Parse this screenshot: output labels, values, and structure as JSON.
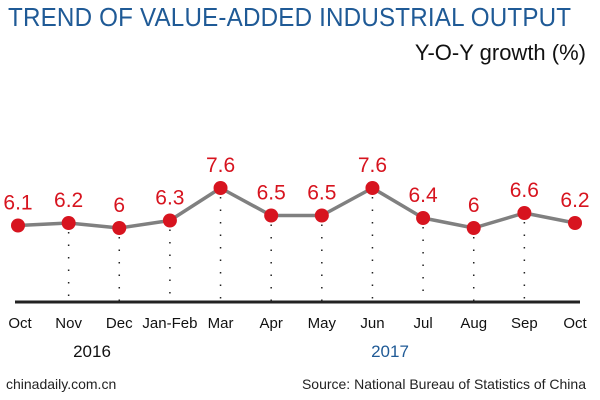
{
  "title": "TREND OF VALUE-ADDED INDUSTRIAL OUTPUT",
  "subtitle": "Y-O-Y growth (%)",
  "footer": {
    "left": "chinadaily.com.cn",
    "right": "Source: National Bureau of Statistics of China"
  },
  "chart_data": {
    "type": "line",
    "title": "TREND OF VALUE-ADDED INDUSTRIAL OUTPUT",
    "ylabel": "Y-O-Y growth (%)",
    "categories": [
      "Oct",
      "Nov",
      "Dec",
      "Jan-Feb",
      "Mar",
      "Apr",
      "May",
      "Jun",
      "Jul",
      "Aug",
      "Sep",
      "Oct"
    ],
    "values": [
      6.1,
      6.2,
      6,
      6.3,
      7.6,
      6.5,
      6.5,
      7.6,
      6.4,
      6,
      6.6,
      6.2
    ],
    "value_labels": [
      "6.1",
      "6.2",
      "6",
      "6.3",
      "7.6",
      "6.5",
      "6.5",
      "7.6",
      "6.4",
      "6",
      "6.6",
      "6.2"
    ],
    "year_labels": [
      {
        "text": "2016",
        "color": "#111111"
      },
      {
        "text": "2017",
        "color": "#1f5a96"
      }
    ],
    "grid": false,
    "legend": "none",
    "colors": {
      "line": "#808080",
      "point": "#d7141f",
      "label": "#d7141f",
      "title": "#1f5a96"
    }
  }
}
